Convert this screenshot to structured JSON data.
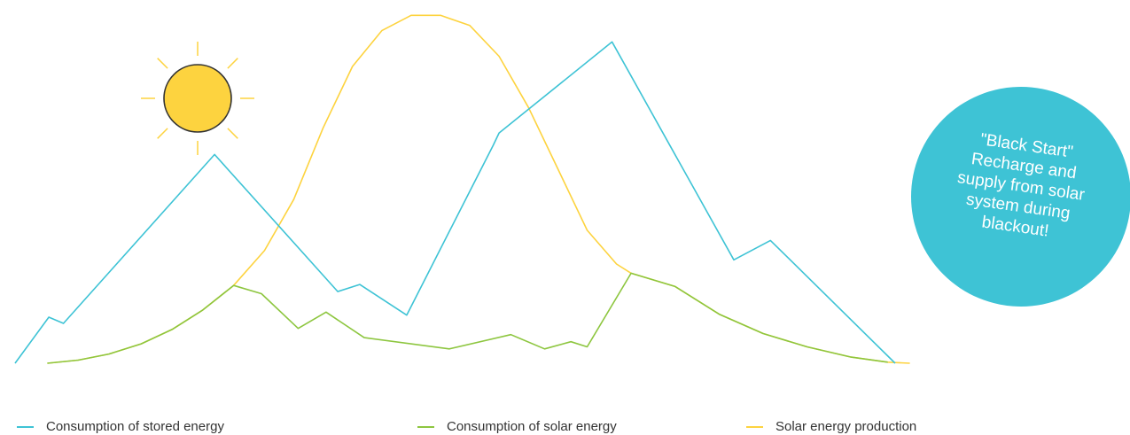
{
  "chart_data": {
    "type": "line",
    "title": "",
    "xlabel": "",
    "ylabel": "",
    "grid": false,
    "legend_placement": "bottom",
    "colors": {
      "stored": "#3ec3d5",
      "solar_consumption": "#8dc63f",
      "solar_production": "#fdd33f",
      "sun_fill": "#fdd33f",
      "sun_stroke": "#333333",
      "badge": "#3ec3d5"
    },
    "series": [
      {
        "name": "Consumption of stored energy",
        "color": "#3ec3d5",
        "points": [
          [
            0,
            0
          ],
          [
            2.3,
            4.5
          ],
          [
            3.3,
            3.9
          ],
          [
            13.6,
            20.4
          ],
          [
            22.0,
            7.0
          ],
          [
            23.5,
            7.7
          ],
          [
            26.7,
            4.7
          ],
          [
            32.6,
            21.3
          ],
          [
            33.0,
            22.5
          ],
          [
            40.7,
            31.4
          ],
          [
            49.0,
            10.1
          ],
          [
            51.5,
            12.0
          ],
          [
            60.0,
            0
          ]
        ]
      },
      {
        "name": "Consumption of solar energy",
        "color": "#8dc63f",
        "points": [
          [
            2.2,
            0
          ],
          [
            4.3,
            0.3
          ],
          [
            6.4,
            0.9
          ],
          [
            8.6,
            1.9
          ],
          [
            10.7,
            3.3
          ],
          [
            12.8,
            5.2
          ],
          [
            14.9,
            7.6
          ],
          [
            16.8,
            6.8
          ],
          [
            19.3,
            3.4
          ],
          [
            21.2,
            5.0
          ],
          [
            23.8,
            2.5
          ],
          [
            29.6,
            1.4
          ],
          [
            33.8,
            2.8
          ],
          [
            36.1,
            1.4
          ],
          [
            37.9,
            2.1
          ],
          [
            39.0,
            1.6
          ],
          [
            42.0,
            8.8
          ],
          [
            45.0,
            7.5
          ],
          [
            48.0,
            4.8
          ],
          [
            51.0,
            2.9
          ],
          [
            54.0,
            1.6
          ],
          [
            57.0,
            0.6
          ],
          [
            59.5,
            0.1
          ]
        ]
      },
      {
        "name": "Solar energy production",
        "color": "#fdd33f",
        "points": [
          [
            2.2,
            0
          ],
          [
            4.3,
            0.3
          ],
          [
            6.4,
            0.9
          ],
          [
            8.6,
            1.9
          ],
          [
            10.7,
            3.3
          ],
          [
            12.8,
            5.2
          ],
          [
            14.9,
            7.6
          ],
          [
            17.0,
            11.0
          ],
          [
            19.0,
            16.0
          ],
          [
            21.0,
            23.0
          ],
          [
            23.0,
            29.0
          ],
          [
            25.0,
            32.5
          ],
          [
            27.0,
            34.0
          ],
          [
            29.0,
            34.0
          ],
          [
            31.0,
            33.0
          ],
          [
            33.0,
            30.0
          ],
          [
            35.0,
            25.0
          ],
          [
            37.0,
            19.0
          ],
          [
            39.0,
            13.0
          ],
          [
            41.0,
            9.7
          ],
          [
            42.0,
            8.8
          ],
          [
            45.0,
            7.5
          ],
          [
            48.0,
            4.8
          ],
          [
            51.0,
            2.9
          ],
          [
            54.0,
            1.6
          ],
          [
            57.0,
            0.6
          ],
          [
            59.5,
            0.1
          ],
          [
            61.0,
            0
          ]
        ]
      }
    ],
    "annotation": "\"Black Start\" Recharge and supply from solar system during blackout!"
  },
  "badge": {
    "lines": [
      "\"Black Start\"",
      "Recharge and",
      "supply from solar",
      "system during",
      "blackout!"
    ]
  },
  "legend": {
    "items": [
      {
        "label": "Consumption of stored energy",
        "color": "#3ec3d5"
      },
      {
        "label": "Consumption of solar energy",
        "color": "#8dc63f"
      },
      {
        "label": "Solar energy production",
        "color": "#fdd33f"
      }
    ]
  },
  "icons": {
    "sun": "sun-icon"
  }
}
